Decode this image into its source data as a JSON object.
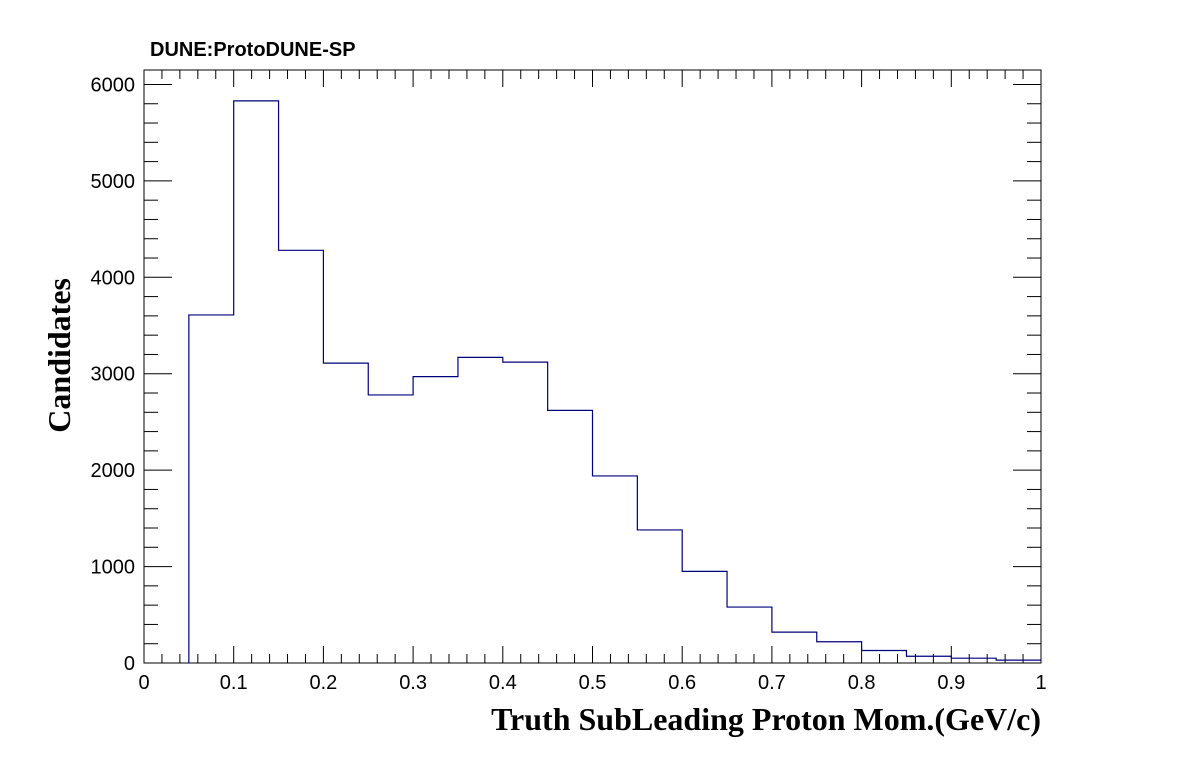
{
  "chart_data": {
    "type": "bar",
    "subtype": "histogram",
    "title": "DUNE:ProtoDUNE-SP",
    "xlabel": "Truth SubLeading Proton Mom.(GeV/c)",
    "ylabel": "Candidates",
    "xlim": [
      0,
      1
    ],
    "ylim": [
      0,
      6150
    ],
    "bin_edges": [
      0,
      0.05,
      0.1,
      0.15,
      0.2,
      0.25,
      0.3,
      0.35,
      0.4,
      0.45,
      0.5,
      0.55,
      0.6,
      0.65,
      0.7,
      0.75,
      0.8,
      0.85,
      0.9,
      0.95,
      1.0
    ],
    "values": [
      0,
      3610,
      5830,
      4280,
      3110,
      2780,
      2970,
      3170,
      3120,
      2620,
      1940,
      1380,
      950,
      580,
      320,
      220,
      130,
      70,
      50,
      30
    ],
    "x_ticks": [
      "0",
      "0.1",
      "0.2",
      "0.3",
      "0.4",
      "0.5",
      "0.6",
      "0.7",
      "0.8",
      "0.9",
      "1"
    ],
    "x_tick_values": [
      0,
      0.1,
      0.2,
      0.3,
      0.4,
      0.5,
      0.6,
      0.7,
      0.8,
      0.9,
      1.0
    ],
    "y_ticks": [
      "0",
      "1000",
      "2000",
      "3000",
      "4000",
      "5000",
      "6000"
    ],
    "y_tick_values": [
      0,
      1000,
      2000,
      3000,
      4000,
      5000,
      6000
    ],
    "grid": false,
    "line_color": "#00007f",
    "frame_color": "#000000"
  }
}
